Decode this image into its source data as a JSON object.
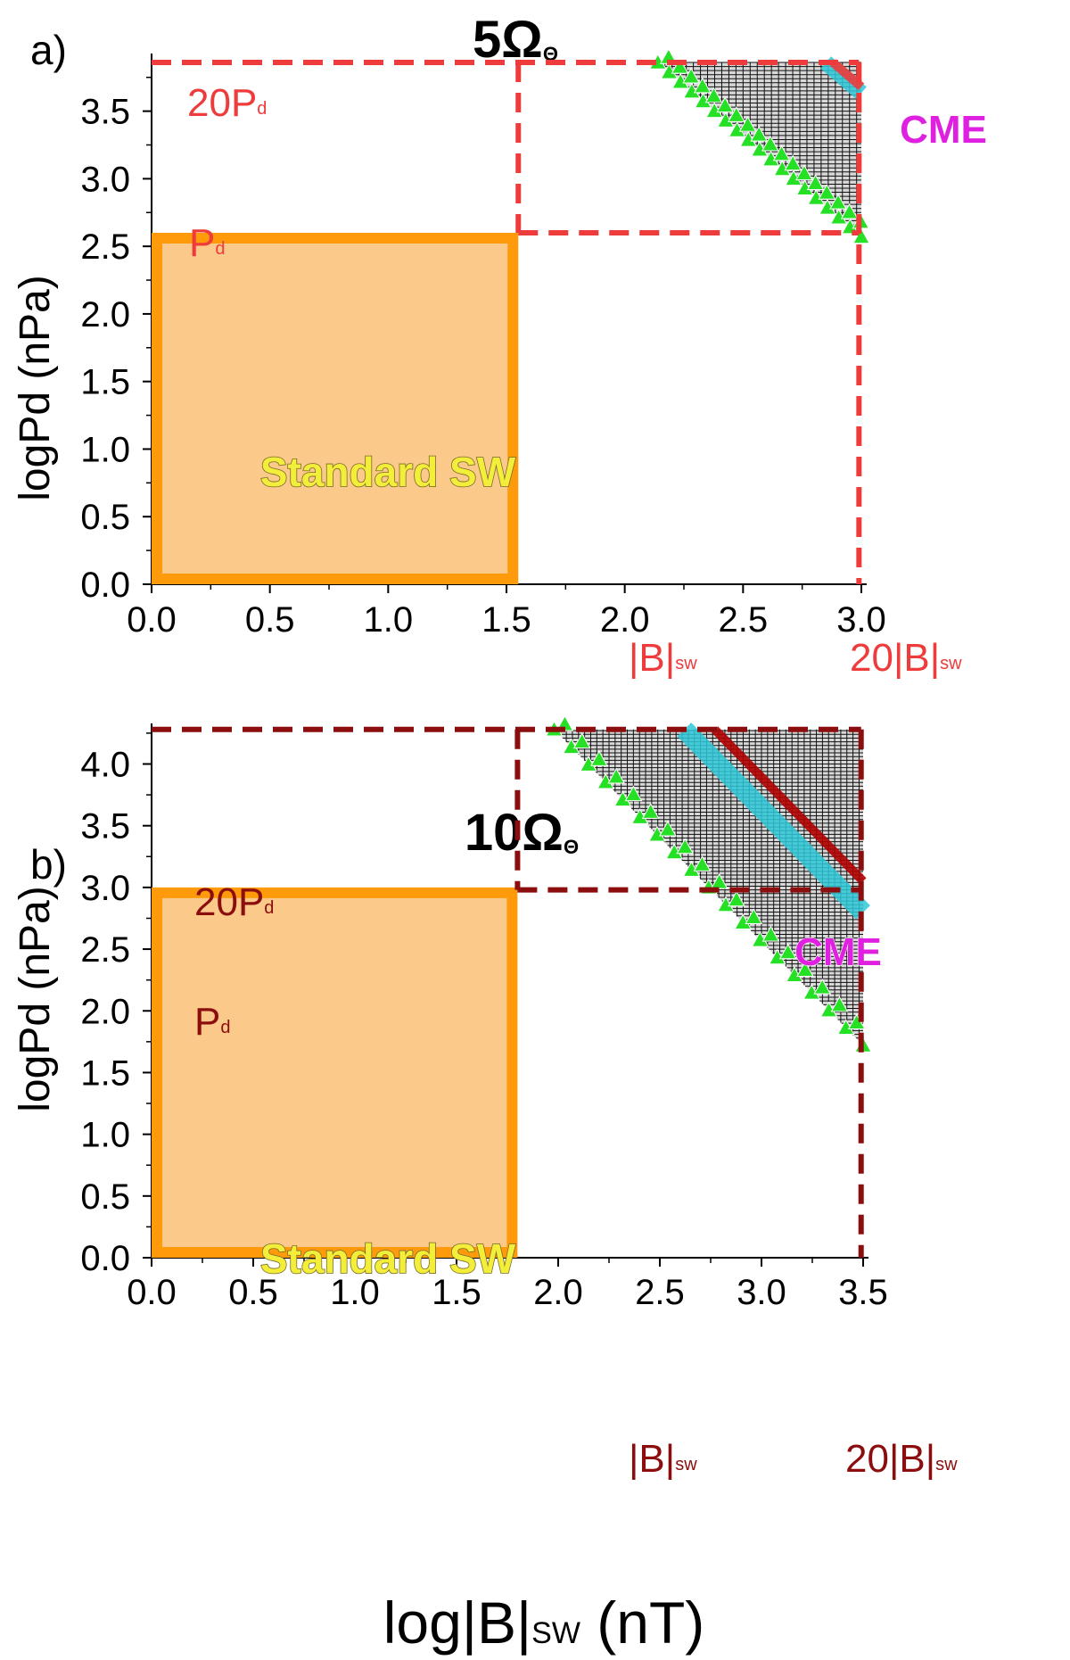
{
  "colors": {
    "panel_a_dash": "#ee3b3b",
    "panel_b_dash": "#8b0d0d",
    "standard_fill": "#fbc98a",
    "standard_stroke": "#ff9a0a",
    "triangle": "#26e026",
    "cme_band": "#2ec8d8",
    "cme_line_a": "#ee3b3b",
    "cme_line_b": "#b00000",
    "cme_text": "#e020e0",
    "standard_text": "#f2ee3a"
  },
  "figure": {
    "xlabel_main": "log|B|",
    "xlabel_sub": "SW",
    "xlabel_unit": " (nT)"
  },
  "chart_data": [
    {
      "type": "scatter",
      "panel": "a)",
      "title_main": "5Ω",
      "title_sub": "Θ",
      "ylabel": "logPd (nPa)",
      "xlim": [
        0,
        3
      ],
      "ylim": [
        0,
        3.9
      ],
      "xticks": [
        "0.0",
        "0.5",
        "1.0",
        "1.5",
        "2.0",
        "2.5",
        "3.0"
      ],
      "yticks": [
        "0.0",
        "0.5",
        "1.0",
        "1.5",
        "2.0",
        "2.5",
        "3.0",
        "3.5"
      ],
      "standard_sw": {
        "label": "Standard SW",
        "logB_max": 1.55,
        "logPd_max": 2.6
      },
      "thresholds": {
        "pd": {
          "label": "P",
          "sub": "d",
          "value": 2.6
        },
        "pd20": {
          "label": "20P",
          "sub": "d",
          "value": 3.86
        },
        "b": {
          "label": "|B|",
          "sub": "sw",
          "value": 1.55
        },
        "b20": {
          "label": "20|B|",
          "sub": "sw",
          "value": 2.99
        }
      },
      "cme_label": "CME",
      "boundary": {
        "x": [
          2.14,
          3.0
        ],
        "y": [
          3.86,
          2.57
        ]
      },
      "cme_band_start": [
        2.85,
        3.86
      ],
      "cme_line_start": [
        2.88,
        3.86
      ],
      "grid_step": 0.03
    },
    {
      "type": "scatter",
      "panel": "b)",
      "title_main": "10Ω",
      "title_sub": "Θ",
      "ylabel": "logPd (nPa)",
      "xlim": [
        0,
        3.5
      ],
      "ylim": [
        0,
        4.3
      ],
      "xticks": [
        "0.0",
        "0.5",
        "1.0",
        "1.5",
        "2.0",
        "2.5",
        "3.0",
        "3.5"
      ],
      "yticks": [
        "0.0",
        "0.5",
        "1.0",
        "1.5",
        "2.0",
        "2.5",
        "3.0",
        "3.5",
        "4.0"
      ],
      "standard_sw": {
        "label": "Standard SW",
        "logB_max": 1.8,
        "logPd_max": 3.0
      },
      "thresholds": {
        "pd": {
          "label": "P",
          "sub": "d",
          "value": 2.98
        },
        "pd20": {
          "label": "20P",
          "sub": "d",
          "value": 4.28
        },
        "b": {
          "label": "|B|",
          "sub": "sw",
          "value": 1.8
        },
        "b20": {
          "label": "20|B|",
          "sub": "sw",
          "value": 3.49
        }
      },
      "cme_label": "CME",
      "boundary": {
        "x": [
          1.98,
          3.5
        ],
        "y": [
          4.28,
          1.72
        ]
      },
      "cme_band_start": [
        2.62,
        4.28
      ],
      "cme_line_start": [
        2.77,
        4.28
      ],
      "grid_step": 0.03
    }
  ]
}
